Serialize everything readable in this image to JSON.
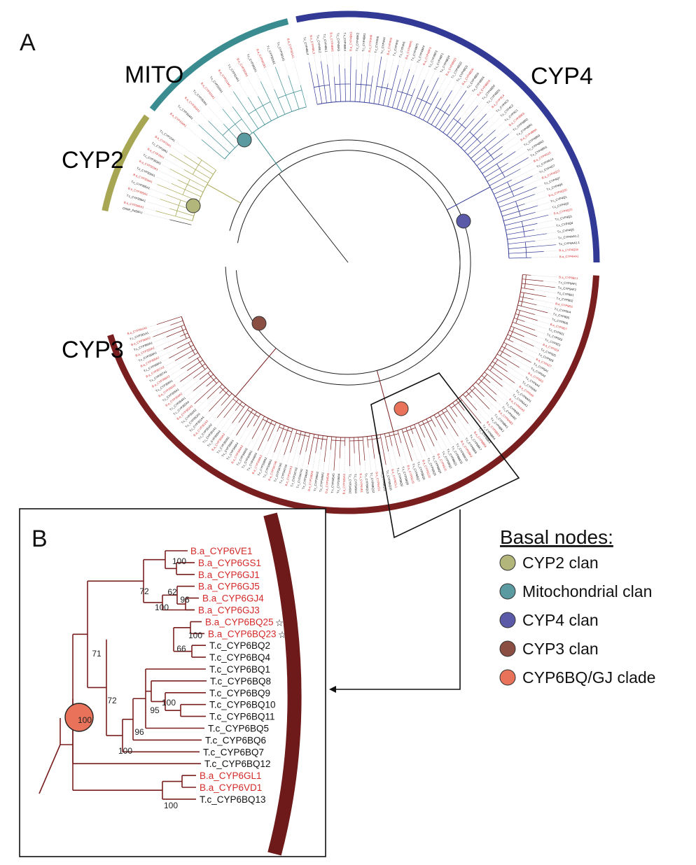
{
  "panels": {
    "a": "A",
    "b": "B"
  },
  "clans": {
    "cyp4": {
      "label": "CYP4",
      "color": "#323a96"
    },
    "mito": {
      "label": "MITO",
      "color": "#3a8c91"
    },
    "cyp2": {
      "label": "CYP2",
      "color": "#a6a653"
    },
    "cyp3": {
      "label": "CYP3",
      "color": "#7a1f1f"
    },
    "outgroup": {
      "label": "CPAR_P450FU"
    }
  },
  "legend": {
    "title": "Basal nodes:",
    "items": [
      {
        "label": "CYP2 clan",
        "color": "#b3b67a"
      },
      {
        "label": "Mitochondrial clan",
        "color": "#5b9aa0"
      },
      {
        "label": "CYP4 clan",
        "color": "#5a5aa8"
      },
      {
        "label": "CYP3 clan",
        "color": "#8a4f42"
      },
      {
        "label": "CYP6BQ/GJ clade",
        "color": "#e9735a"
      }
    ]
  },
  "colors": {
    "ba_label": "#d42a2a",
    "tc_label": "#111111",
    "cyp3_branch": "#7a1f1f",
    "inset_bar": "#6e1a1a"
  },
  "panelA_leaf_names": [
    "B.a_CYP4AA1",
    "B.a_CYP4Q16",
    "T.c_CYP4AA1.1",
    "T.c_CYP4AA1.2",
    "T.c_CYP4Q5",
    "T.c_CYP4Q4",
    "T.c_CYP4Q3",
    "B.a_CYP4Q21",
    "T.c_CYP4Q2",
    "T.c_CYP4Q1",
    "B.a_CYP4Q20",
    "T.c_CYP4Q6",
    "T.c_CYP4Q7",
    "B.a_CYP4Q22",
    "T.c_CYP4G7",
    "T.c_CYP4G14",
    "B.a_CYP4G15",
    "T.c_CYP4BN1",
    "T.c_CYP4BN2",
    "T.c_CYP4BN3",
    "B.a_CYP4BN4",
    "T.c_CYP4BR1",
    "T.c_CYP4BR2",
    "B.a_CYP4BR3",
    "T.c_CYP4C1",
    "T.c_CYP4C2",
    "T.c_CYP4C3",
    "B.a_CYP4C4",
    "T.c_CYP4BD1",
    "T.c_CYP4BD2",
    "B.a_CYP4BD3",
    "T.c_CYP4BD4",
    "T.c_CYP4BD5",
    "B.a_CYP4BD6",
    "T.c_CYP4BQ1",
    "T.c_CYP4BQ2",
    "B.a_CYP4BQ3",
    "T.c_CYP4BQ4",
    "T.c_CYP4BF1",
    "T.c_CYP4BF2",
    "B.a_CYP4BF3",
    "T.c_CYP4BF4",
    "T.c_CYP4BF5",
    "B.a_CYP4BF6",
    "T.c_CYP4H1",
    "T.c_CYP4H2",
    "B.a_CYP4H3",
    "T.c_CYP4H4",
    "T.c_CYP4H5",
    "B.a_CYP4H6",
    "T.c_CYP4BK1",
    "T.c_CYP4BK2",
    "B.a_CYP4BK3",
    "T.c_CYP4BK4",
    "T.c_CYP4BK5",
    "B.a_CYP4BK6",
    "T.c_CYP4BL1",
    "T.c_CYP4BL2",
    "B.a_CYP4BL3",
    "T.c_CYP4BL4",
    "B.a_CYP301A1",
    "T.c_CYP301A1",
    "T.c_CYP301B1",
    "B.a_CYP301B1",
    "T.c_CYP302A1",
    "B.a_CYP302A1",
    "T.c_CYP314A1",
    "B.a_CYP314A1",
    "T.c_CYP315A1",
    "B.a_CYP315A1",
    "T.c_CYP353A1",
    "B.a_CYP353A1",
    "T.c_CYP334A1",
    "B.a_CYP334A1",
    "T.c_CYP15A1",
    "B.a_CYP15A1",
    "T.c_CYP18A1",
    "B.a_CYP18A1",
    "T.c_CYP303A1",
    "B.a_CYP303A1",
    "T.c_CYP304A1",
    "B.a_CYP304A1",
    "T.c_CYP305A1",
    "B.a_CYP305A1",
    "T.c_CYP306A1",
    "B.a_CYP306A1",
    "CPAR_P450FU",
    "B.a_CYP9BL1",
    "T.c_CYP9AF1",
    "T.c_CYP9AF2",
    "T.c_CYP9D1",
    "T.c_CYP9D2",
    "B.a_CYP9D3",
    "T.c_CYP9D4",
    "T.c_CYP9D5",
    "T.c_CYP9D6",
    "B.a_CYP9D7",
    "T.c_CYP9Z1",
    "T.c_CYP9Z2",
    "T.c_CYP9Z3",
    "B.a_CYP9Z4",
    "T.c_CYP9Z5",
    "T.c_CYP9Z6",
    "B.a_CYP9Z7",
    "T.c_CYP6A1",
    "T.c_CYP6A2",
    "B.a_CYP6A3",
    "T.c_CYP6A4",
    "T.c_CYP6A5",
    "B.a_CYP6A6",
    "T.c_CYP6AA1",
    "T.c_CYP6AA2",
    "B.a_CYP6AA3",
    "T.c_CYP6AB1",
    "T.c_CYP6AB2",
    "B.a_CYP6AB3",
    "T.c_CYP6BK1",
    "T.c_CYP6BK2",
    "B.a_CYP6BK3",
    "T.c_CYP6BK4",
    "T.c_CYP6BK5",
    "B.a_CYP6BK6",
    "T.c_CYP6BK7",
    "T.c_CYP6BK8",
    "B.a_CYP6BK9",
    "T.c_CYP6BK10",
    "T.c_CYP6BK11",
    "T.c_CYP6BQ1",
    "T.c_CYP6BQ2",
    "B.a_CYP6GJ1",
    "T.c_CYP6BQ4",
    "T.c_CYP6BQ5",
    "B.a_CYP6GJ2",
    "T.c_CYP6BQ6",
    "T.c_CYP6BQ7",
    "B.a_CYP6GJ3",
    "T.c_CYP6BQ8",
    "T.c_CYP6BQ9",
    "B.a_CYP6GL1",
    "T.c_CYP6BQ10",
    "T.c_CYP6BQ11",
    "B.a_CYP6VD1",
    "T.c_CYP6BQ12",
    "T.c_CYP6BQ13",
    "B.a_CYP6VE1",
    "T.c_CYP345A1",
    "T.c_CYP345A2",
    "B.a_CYP345A3",
    "T.c_CYP345A4",
    "T.c_CYP345A5",
    "B.a_CYP345A6",
    "T.c_CYP346A1",
    "T.c_CYP346A2",
    "B.a_CYP346A3",
    "T.c_CYP346A4",
    "T.c_CYP347A1",
    "T.c_CYP347A2",
    "B.a_CYP347A3",
    "T.c_CYP347A4",
    "T.c_CYP347A5",
    "B.a_CYP347A6",
    "T.c_CYP348A1",
    "T.c_CYP348A2",
    "B.a_CYP348A3",
    "T.c_CYP348A4",
    "T.c_CYP349A1",
    "T.c_CYP349A2",
    "B.a_CYP349A3",
    "T.c_CYP349A4",
    "T.c_CYP350A1",
    "T.c_CYP350A2",
    "B.a_CYP350A3",
    "T.c_CYP350A4",
    "T.c_CYP351A1",
    "T.c_CYP351A2",
    "B.a_CYP351A3",
    "T.c_CYP351A4",
    "T.c_CYP352A1",
    "T.c_CYP352A2",
    "B.a_CYP352A3",
    "T.c_CYP352A4",
    "T.c_CYP354A1",
    "B.a_CYP354A2",
    "T.c_CYP355A1",
    "B.a_CYP355A2",
    "T.c_CYP356A1",
    "B.a_CYP356A2",
    "T.c_CYP357A1",
    "B.a_CYP357A2",
    "T.c_CYP358A1",
    "B.a_CYP358A2",
    "T.c_CYP359A1",
    "B.a_CYP359A2",
    "T.c_CYP360A1",
    "B.a_CYP360A2",
    "T.c_CYP361A1",
    "B.a_CYP361A2"
  ],
  "panelB": {
    "leaves": [
      {
        "name": "B.a_CYP6VE1",
        "species": "ba",
        "star": false
      },
      {
        "name": "B.a_CYP6GS1",
        "species": "ba",
        "star": false
      },
      {
        "name": "B.a_CYP6GJ1",
        "species": "ba",
        "star": false
      },
      {
        "name": "B.a_CYP6GJ5",
        "species": "ba",
        "star": false
      },
      {
        "name": "B.a_CYP6GJ4",
        "species": "ba",
        "star": false
      },
      {
        "name": "B.a_CYP6GJ3",
        "species": "ba",
        "star": false
      },
      {
        "name": "B.a_CYP6BQ25",
        "species": "ba",
        "star": true
      },
      {
        "name": "B.a_CYP6BQ23",
        "species": "ba",
        "star": true
      },
      {
        "name": "T.c_CYP6BQ2",
        "species": "tc",
        "star": false
      },
      {
        "name": "T.c_CYP6BQ4",
        "species": "tc",
        "star": false
      },
      {
        "name": "T.c_CYP6BQ1",
        "species": "tc",
        "star": false
      },
      {
        "name": "T.c_CYP6BQ8",
        "species": "tc",
        "star": false
      },
      {
        "name": "T.c_CYP6BQ9",
        "species": "tc",
        "star": false
      },
      {
        "name": "T.c_CYP6BQ10",
        "species": "tc",
        "star": false
      },
      {
        "name": "T.c_CYP6BQ11",
        "species": "tc",
        "star": false
      },
      {
        "name": "T.c_CYP6BQ5",
        "species": "tc",
        "star": false
      },
      {
        "name": "T.c_CYP6BQ6",
        "species": "tc",
        "star": false
      },
      {
        "name": "T.c_CYP6BQ7",
        "species": "tc",
        "star": false
      },
      {
        "name": "T.c_CYP6BQ12",
        "species": "tc",
        "star": false
      },
      {
        "name": "B.a_CYP6GL1",
        "species": "ba",
        "star": false
      },
      {
        "name": "B.a_CYP6VD1",
        "species": "ba",
        "star": false
      },
      {
        "name": "T.c_CYP6BQ13",
        "species": "tc",
        "star": false
      }
    ],
    "bootstrap": [
      "100",
      "62",
      "96",
      "100",
      "72",
      "100",
      "66",
      "71",
      "100",
      "95",
      "96",
      "100",
      "72",
      "100",
      "100"
    ],
    "star_symbol": "☆"
  }
}
